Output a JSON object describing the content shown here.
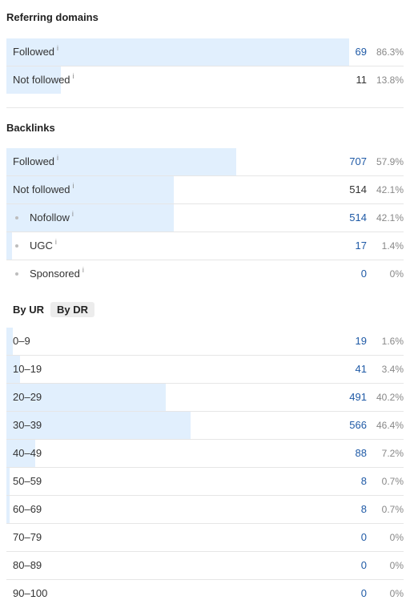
{
  "referring_domains": {
    "title": "Referring domains",
    "rows": [
      {
        "label": "Followed",
        "info": "i",
        "count": "69",
        "percent": "86.3%",
        "fraction": 0.863,
        "linked": true,
        "sub": false
      },
      {
        "label": "Not followed",
        "info": "i",
        "count": "11",
        "percent": "13.8%",
        "fraction": 0.138,
        "linked": false,
        "sub": false
      }
    ]
  },
  "backlinks": {
    "title": "Backlinks",
    "rows": [
      {
        "label": "Followed",
        "info": "i",
        "count": "707",
        "percent": "57.9%",
        "fraction": 0.579,
        "linked": true,
        "sub": false
      },
      {
        "label": "Not followed",
        "info": "i",
        "count": "514",
        "percent": "42.1%",
        "fraction": 0.421,
        "linked": false,
        "sub": false
      },
      {
        "label": "Nofollow",
        "info": "i",
        "count": "514",
        "percent": "42.1%",
        "fraction": 0.421,
        "linked": true,
        "sub": true
      },
      {
        "label": "UGC",
        "info": "i",
        "count": "17",
        "percent": "1.4%",
        "fraction": 0.014,
        "linked": true,
        "sub": true
      },
      {
        "label": "Sponsored",
        "info": "i",
        "count": "0",
        "percent": "0%",
        "fraction": 0.0,
        "linked": true,
        "sub": true
      }
    ]
  },
  "rating_toggle": {
    "by_ur": "By UR",
    "by_dr": "By DR"
  },
  "ur_distribution": {
    "rows": [
      {
        "label": "0–9",
        "count": "19",
        "percent": "1.6%",
        "fraction": 0.016
      },
      {
        "label": "10–19",
        "count": "41",
        "percent": "3.4%",
        "fraction": 0.034
      },
      {
        "label": "20–29",
        "count": "491",
        "percent": "40.2%",
        "fraction": 0.402
      },
      {
        "label": "30–39",
        "count": "566",
        "percent": "46.4%",
        "fraction": 0.464
      },
      {
        "label": "40–49",
        "count": "88",
        "percent": "7.2%",
        "fraction": 0.072
      },
      {
        "label": "50–59",
        "count": "8",
        "percent": "0.7%",
        "fraction": 0.007
      },
      {
        "label": "60–69",
        "count": "8",
        "percent": "0.7%",
        "fraction": 0.007
      },
      {
        "label": "70–79",
        "count": "0",
        "percent": "0%",
        "fraction": 0.0
      },
      {
        "label": "80–89",
        "count": "0",
        "percent": "0%",
        "fraction": 0.0
      },
      {
        "label": "90–100",
        "count": "0",
        "percent": "0%",
        "fraction": 0.0
      }
    ]
  },
  "colors": {
    "bar_fill": "#e1effd",
    "link_blue": "#1f5aa6",
    "percent_gray": "#888888",
    "divider": "#e6e6e6"
  }
}
